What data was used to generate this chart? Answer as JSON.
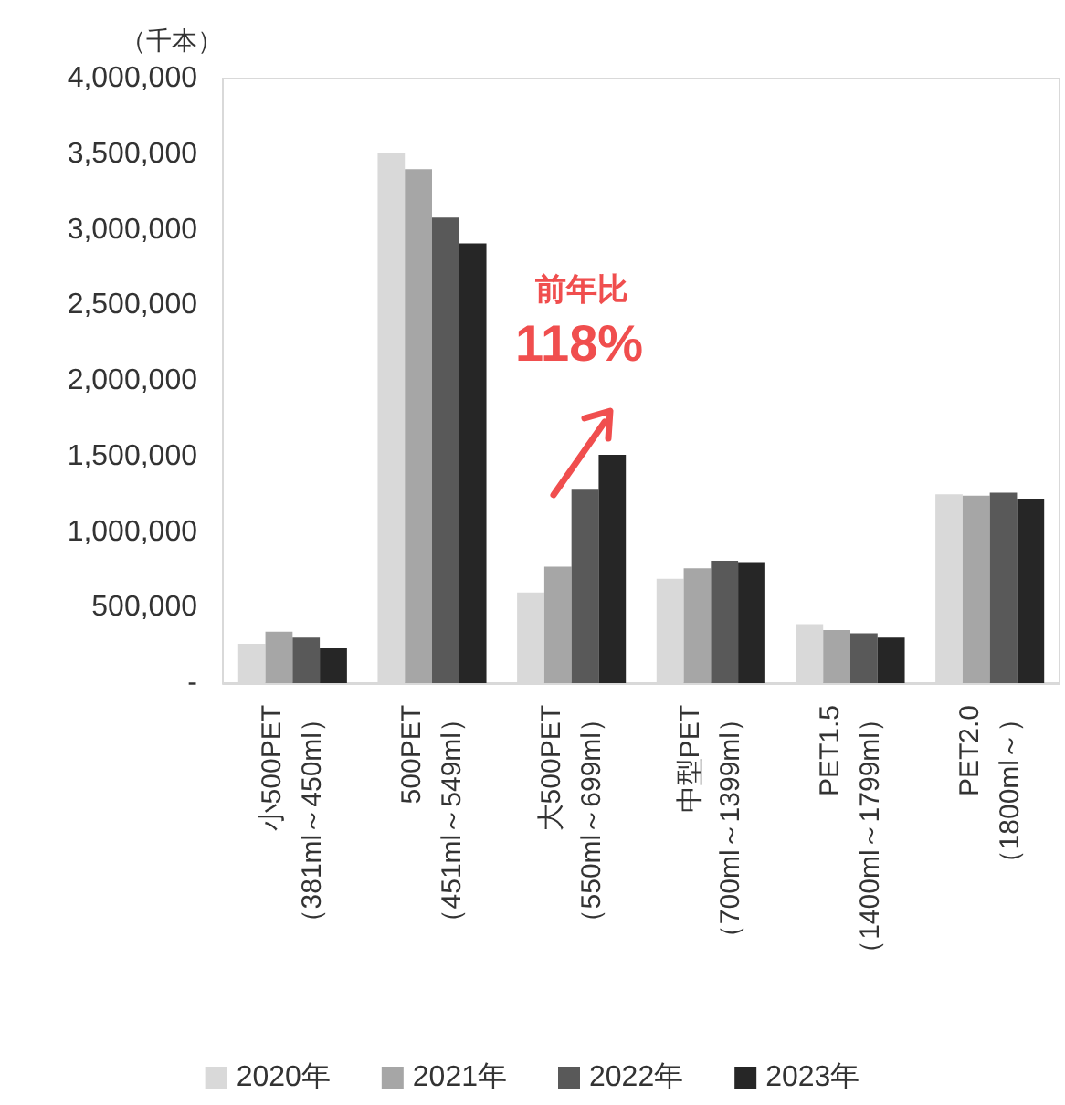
{
  "chart_data": {
    "type": "bar",
    "ylabel": "（千本）",
    "categories": [
      "小500PET\n（381ml～450ml）",
      "500PET\n（451ml～549ml）",
      "大500PET\n（550ml～699ml）",
      "中型PET\n（700ml～1399ml）",
      "PET1.5\n（1400ml～1799ml）",
      "PET2.0\n（1800ml～）"
    ],
    "series": [
      {
        "name": "2020年",
        "color": "#d9d9d9",
        "values": [
          260000,
          3510000,
          600000,
          690000,
          390000,
          1250000
        ]
      },
      {
        "name": "2021年",
        "color": "#a6a6a6",
        "values": [
          340000,
          3400000,
          770000,
          760000,
          350000,
          1240000
        ]
      },
      {
        "name": "2022年",
        "color": "#595959",
        "values": [
          300000,
          3080000,
          1280000,
          810000,
          330000,
          1260000
        ]
      },
      {
        "name": "2023年",
        "color": "#262626",
        "values": [
          230000,
          2910000,
          1510000,
          800000,
          300000,
          1220000
        ]
      }
    ],
    "ylim": [
      0,
      4000000
    ],
    "yticks": [
      {
        "value": 0,
        "label": "-"
      },
      {
        "value": 500000,
        "label": "500,000"
      },
      {
        "value": 1000000,
        "label": "1,000,000"
      },
      {
        "value": 1500000,
        "label": "1,500,000"
      },
      {
        "value": 2000000,
        "label": "2,000,000"
      },
      {
        "value": 2500000,
        "label": "2,500,000"
      },
      {
        "value": 3000000,
        "label": "3,000,000"
      },
      {
        "value": 3500000,
        "label": "3,500,000"
      },
      {
        "value": 4000000,
        "label": "4,000,000"
      }
    ],
    "grid": false,
    "legend": "bottom",
    "annotations": [
      "前年比",
      "118%"
    ]
  }
}
